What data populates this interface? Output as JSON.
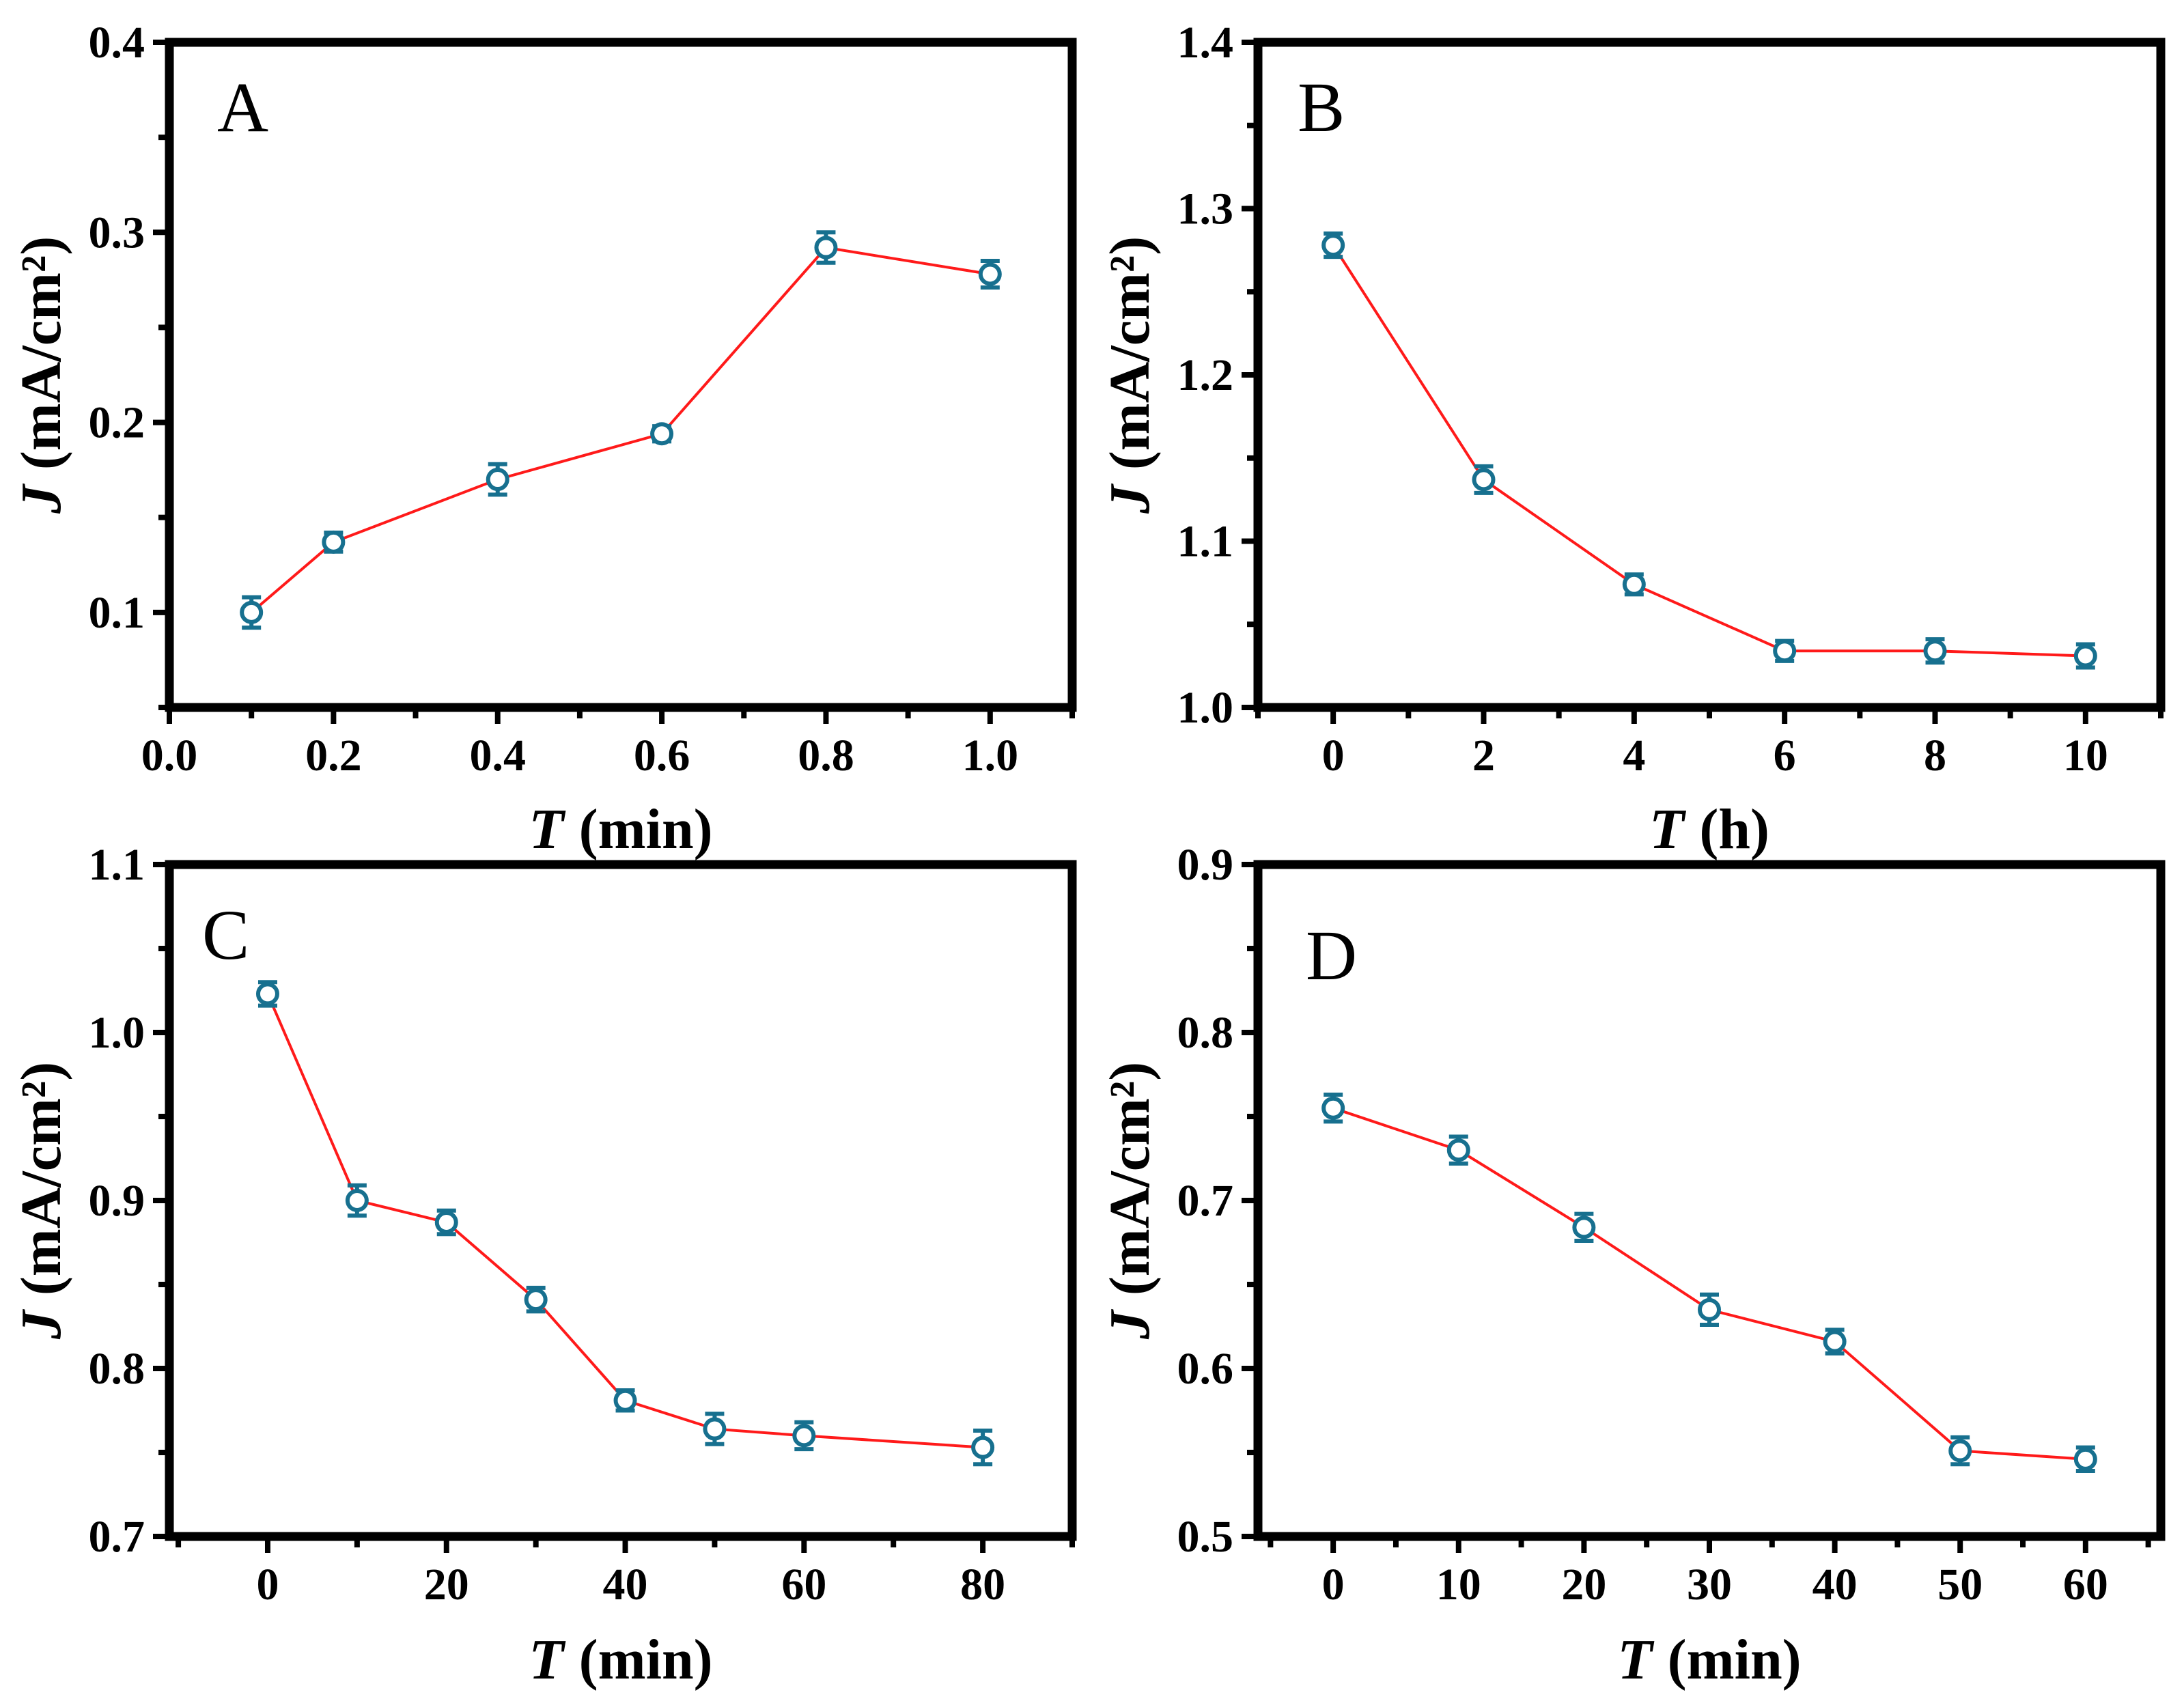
{
  "chart_data": [
    {
      "panel": "A",
      "type": "line",
      "title": "",
      "xlabel": "(min)",
      "xlabel_var": "T",
      "ylabel": "(mA/cm²)",
      "ylabel_var": "J",
      "x": [
        0.1,
        0.2,
        0.4,
        0.6,
        0.8,
        1.0
      ],
      "values": [
        0.1,
        0.137,
        0.17,
        0.194,
        0.292,
        0.278
      ],
      "errors": [
        0.008,
        0.005,
        0.008,
        0.004,
        0.008,
        0.007
      ],
      "xlim": [
        0.0,
        1.1
      ],
      "ylim": [
        0.05,
        0.4
      ],
      "xticks": [
        0.0,
        0.2,
        0.4,
        0.6,
        0.8,
        1.0
      ],
      "xtick_labels": [
        "0.0",
        "0.2",
        "0.4",
        "0.6",
        "0.8",
        "1.0"
      ],
      "yticks": [
        0.1,
        0.2,
        0.3,
        0.4
      ],
      "ytick_labels": [
        "0.1",
        "0.2",
        "0.3",
        "0.4"
      ],
      "line_color": "#ff1a1a",
      "marker_color": "#17708f"
    },
    {
      "panel": "B",
      "type": "line",
      "title": "",
      "xlabel": "(h)",
      "xlabel_var": "T",
      "ylabel": "(mA/cm²)",
      "ylabel_var": "J",
      "x": [
        0,
        2,
        4,
        6,
        8,
        10
      ],
      "values": [
        1.278,
        1.137,
        1.074,
        1.034,
        1.034,
        1.031
      ],
      "errors": [
        0.007,
        0.008,
        0.006,
        0.006,
        0.007,
        0.007
      ],
      "xlim": [
        -1,
        11
      ],
      "ylim": [
        1.0,
        1.4
      ],
      "xticks": [
        0,
        2,
        4,
        6,
        8,
        10
      ],
      "xtick_labels": [
        "0",
        "2",
        "4",
        "6",
        "8",
        "10"
      ],
      "yticks": [
        1.0,
        1.1,
        1.2,
        1.3,
        1.4
      ],
      "ytick_labels": [
        "1.0",
        "1.1",
        "1.2",
        "1.3",
        "1.4"
      ],
      "line_color": "#ff1a1a",
      "marker_color": "#17708f"
    },
    {
      "panel": "C",
      "type": "line",
      "title": "",
      "xlabel": "(min)",
      "xlabel_var": "T",
      "ylabel": "(mA/cm²)",
      "ylabel_var": "J",
      "x": [
        0,
        10,
        20,
        30,
        40,
        50,
        60,
        80
      ],
      "values": [
        1.023,
        0.9,
        0.887,
        0.841,
        0.781,
        0.764,
        0.76,
        0.753
      ],
      "errors": [
        0.007,
        0.009,
        0.007,
        0.007,
        0.006,
        0.009,
        0.008,
        0.01
      ],
      "xlim": [
        -11,
        90
      ],
      "ylim": [
        0.7,
        1.1
      ],
      "xticks": [
        0,
        20,
        40,
        60,
        80
      ],
      "xtick_labels": [
        "0",
        "20",
        "40",
        "60",
        "80"
      ],
      "yticks": [
        0.7,
        0.8,
        0.9,
        1.0,
        1.1
      ],
      "ytick_labels": [
        "0.7",
        "0.8",
        "0.9",
        "1.0",
        "1.1"
      ],
      "line_color": "#ff1a1a",
      "marker_color": "#17708f"
    },
    {
      "panel": "D",
      "type": "line",
      "title": "",
      "xlabel": "(min)",
      "xlabel_var": "T",
      "ylabel": "(mA/cm²)",
      "ylabel_var": "J",
      "x": [
        0,
        10,
        20,
        30,
        40,
        50,
        60
      ],
      "values": [
        0.755,
        0.73,
        0.684,
        0.635,
        0.616,
        0.551,
        0.546
      ],
      "errors": [
        0.008,
        0.008,
        0.008,
        0.009,
        0.007,
        0.008,
        0.007
      ],
      "xlim": [
        -6,
        66
      ],
      "ylim": [
        0.5,
        0.9
      ],
      "xticks": [
        0,
        10,
        20,
        30,
        40,
        50,
        60
      ],
      "xtick_labels": [
        "0",
        "10",
        "20",
        "30",
        "40",
        "50",
        "60"
      ],
      "yticks": [
        0.5,
        0.6,
        0.7,
        0.8,
        0.9
      ],
      "ytick_labels": [
        "0.5",
        "0.6",
        "0.7",
        "0.8",
        "0.9"
      ],
      "line_color": "#ff1a1a",
      "marker_color": "#17708f"
    }
  ]
}
